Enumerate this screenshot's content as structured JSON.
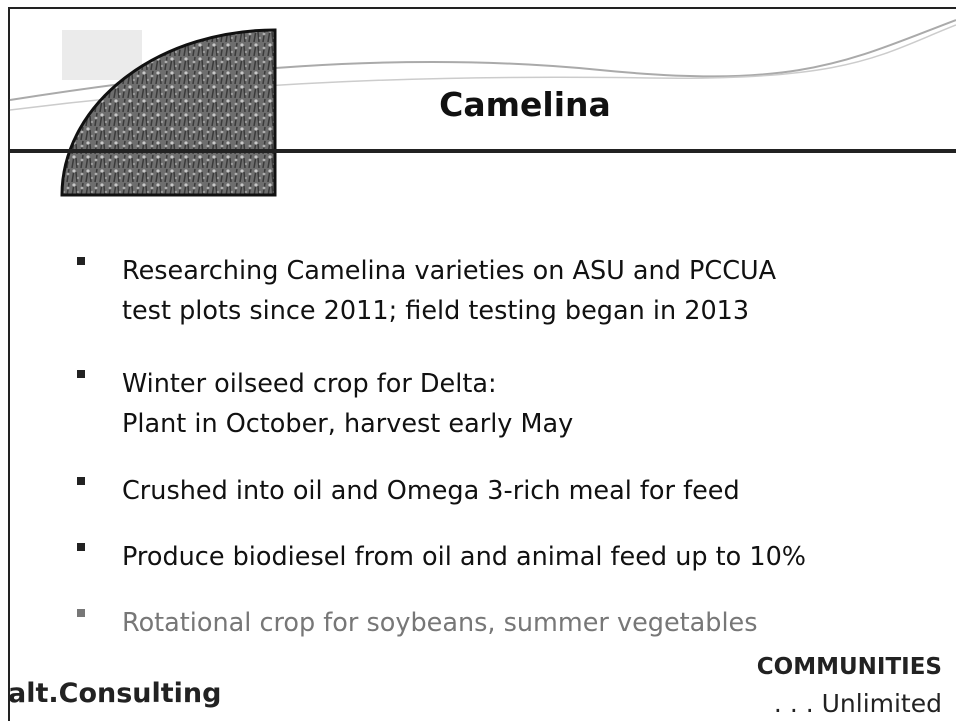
{
  "slide": {
    "title": "Camelina",
    "bullets": [
      {
        "lines": [
          "Researching Camelina varieties on ASU and PCCUA",
          "test plots since 2011; field testing began in 2013"
        ]
      },
      {
        "lines": [
          "Winter oilseed crop for Delta:",
          "Plant in October, harvest early May"
        ]
      },
      {
        "lines": [
          "Crushed into oil and Omega 3-rich meal for feed"
        ]
      },
      {
        "lines": [
          "Produce biodiesel from oil and animal feed up to 10%"
        ]
      },
      {
        "lines": [
          "Rotational crop for soybeans, summer vegetables"
        ]
      }
    ],
    "footer": {
      "left": "alt.Consulting",
      "right_top": "COMMUNITIES",
      "right_bottom": ". . . Unlimited"
    }
  }
}
